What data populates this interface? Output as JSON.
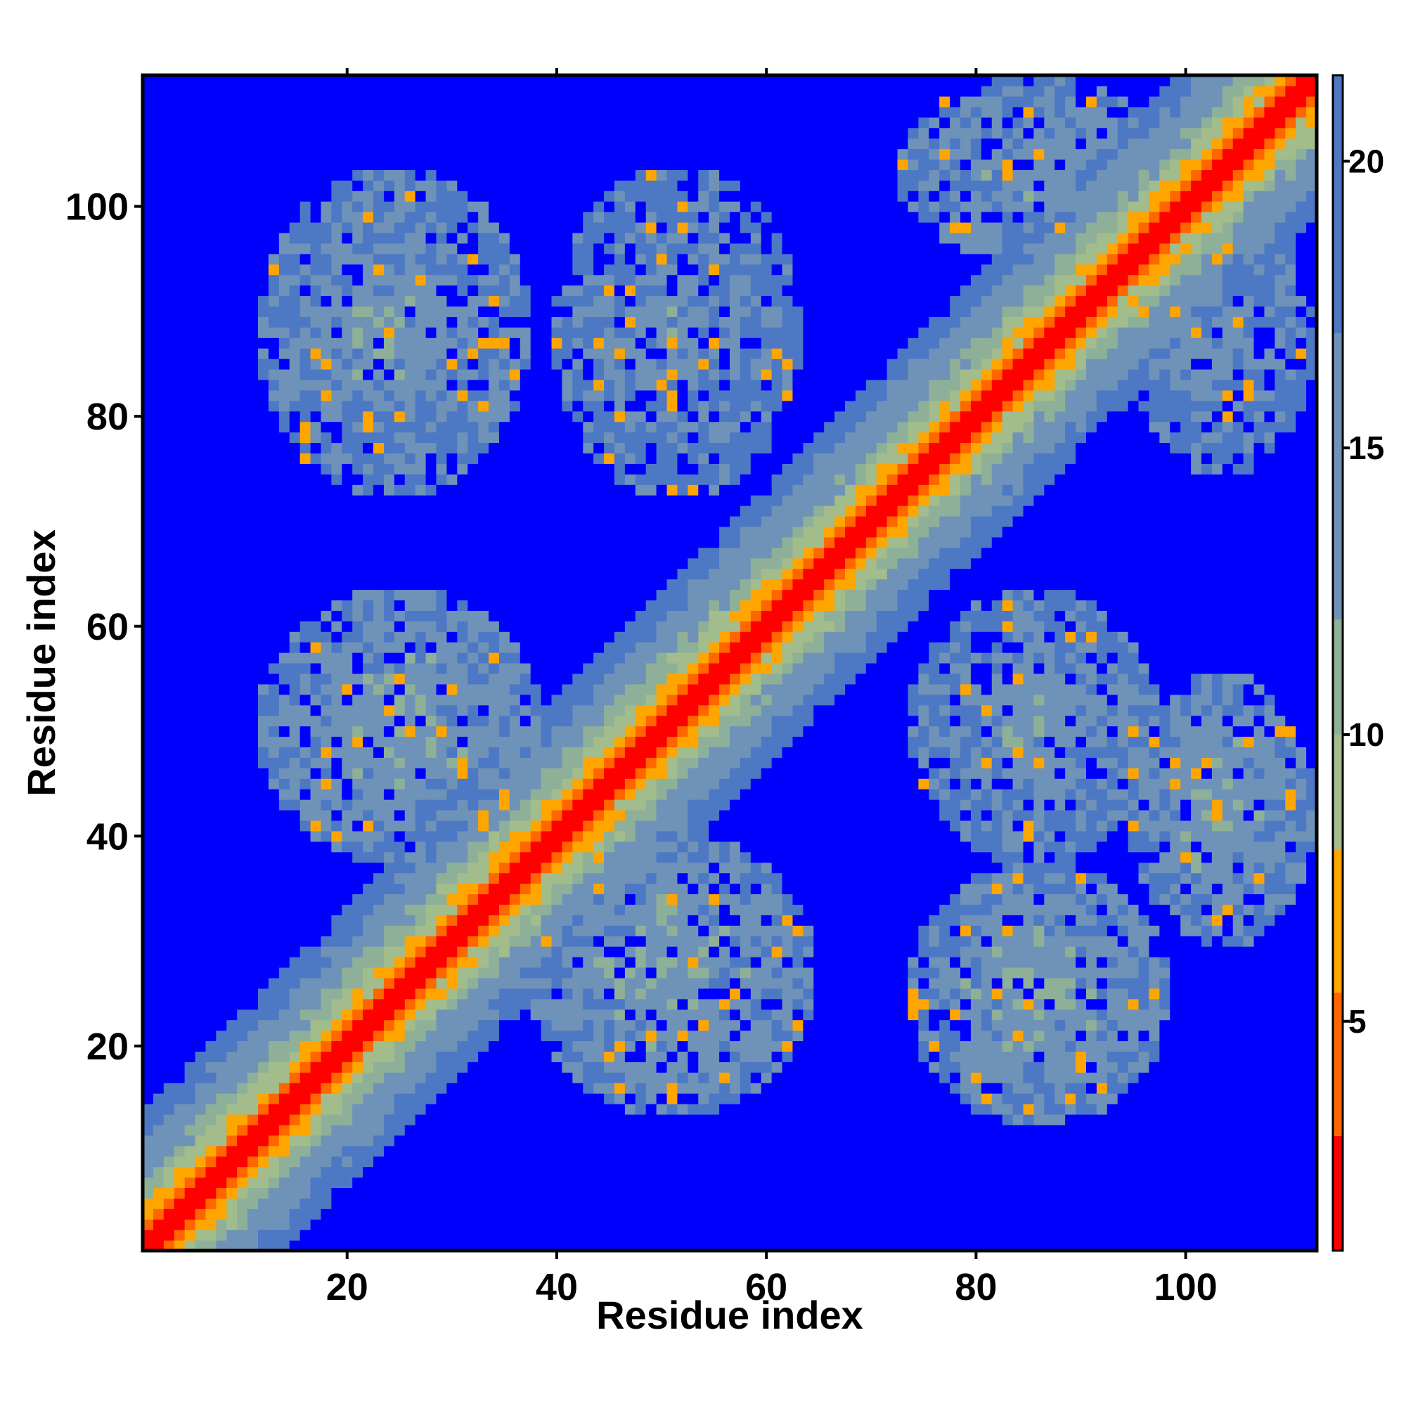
{
  "chart_data": {
    "type": "heatmap",
    "title": "",
    "xlabel": "Residue index",
    "ylabel": "Residue index",
    "xlim": [
      0.5,
      112.5
    ],
    "ylim": [
      0.5,
      112.5
    ],
    "n_residues": 112,
    "x_ticks": [
      20,
      40,
      60,
      80,
      100
    ],
    "y_ticks": [
      20,
      40,
      60,
      80,
      100
    ],
    "colorbar": {
      "range": [
        1.0,
        21.5
      ],
      "ticks": [
        5,
        10,
        15,
        20
      ],
      "colors": [
        {
          "upto": 3.0,
          "color": "#ff0000"
        },
        {
          "upto": 5.5,
          "color": "#ff6600"
        },
        {
          "upto": 8.0,
          "color": "#ffa500"
        },
        {
          "upto": 10.0,
          "color": "#a2bc8c"
        },
        {
          "upto": 12.0,
          "color": "#8fb098"
        },
        {
          "upto": 17.0,
          "color": "#6f92b8"
        },
        {
          "upto": 21.5,
          "color": "#4d78c4"
        }
      ],
      "above_color": "#0000ff"
    },
    "contact_regions": [
      {
        "name": "diagonal band",
        "from": [
          1,
          1
        ],
        "to": [
          112,
          112
        ],
        "note": "distance rises from ~1 on the diagonal to ~20 at offset 12"
      },
      {
        "name": "cluster",
        "x_range": [
          12,
          37
        ],
        "y_range": [
          73,
          103
        ],
        "typical_distance": 13
      },
      {
        "name": "cluster",
        "x_range": [
          40,
          63
        ],
        "y_range": [
          73,
          103
        ],
        "typical_distance": 14
      },
      {
        "name": "cluster",
        "x_range": [
          12,
          38
        ],
        "y_range": [
          38,
          63
        ],
        "typical_distance": 12
      },
      {
        "name": "cluster",
        "x_range": [
          38,
          64
        ],
        "y_range": [
          14,
          40
        ],
        "typical_distance": 12
      },
      {
        "name": "cluster",
        "x_range": [
          74,
          97
        ],
        "y_range": [
          38,
          63
        ],
        "typical_distance": 13
      },
      {
        "name": "cluster",
        "x_range": [
          74,
          98
        ],
        "y_range": [
          13,
          37
        ],
        "typical_distance": 12
      },
      {
        "name": "cluster",
        "x_range": [
          95,
          112
        ],
        "y_range": [
          30,
          55
        ],
        "typical_distance": 12
      },
      {
        "name": "cluster",
        "x_range": [
          73,
          98
        ],
        "y_range": [
          95,
          112
        ],
        "typical_distance": 13
      },
      {
        "name": "cluster",
        "x_range": [
          95,
          112
        ],
        "y_range": [
          75,
          100
        ],
        "typical_distance": 14
      }
    ]
  }
}
